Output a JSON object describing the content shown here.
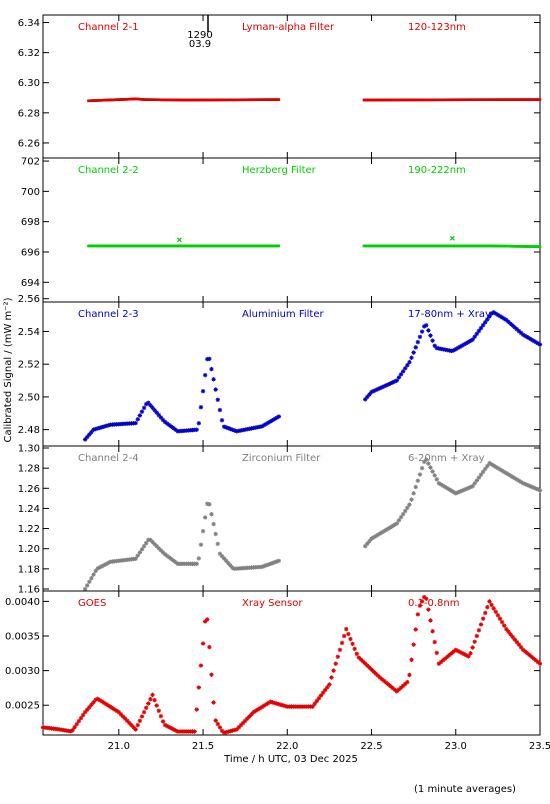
{
  "figure": {
    "ylabel": "Calibrated Signal / (mW m⁻²)",
    "xlabel": "Time / h UTC, 03 Dec 2025",
    "footnote": "(1 minute averages)",
    "annotation": {
      "line1": "1290",
      "line2": "03.9"
    },
    "x_ticks": [
      "21.0",
      "21.5",
      "22.0",
      "22.5",
      "23.0",
      "23.5"
    ]
  },
  "chart_data": [
    {
      "type": "scatter",
      "channel": "Channel 2-1",
      "filter": "Lyman-alpha Filter",
      "band": "120-123nm",
      "color": "#e00000",
      "marker": "dash",
      "xlim": [
        20.55,
        23.5
      ],
      "ylim": [
        6.25,
        6.345
      ],
      "yticks": [
        6.26,
        6.28,
        6.3,
        6.32,
        6.34
      ],
      "ytick_labels": [
        "6.26",
        "6.28",
        "6.30",
        "6.32",
        "6.34"
      ],
      "gap": [
        21.95,
        22.45
      ],
      "curve": [
        [
          20.82,
          6.288
        ],
        [
          21.05,
          6.289
        ],
        [
          21.1,
          6.2893
        ],
        [
          21.15,
          6.2888
        ],
        [
          21.4,
          6.2885
        ],
        [
          21.95,
          6.2888
        ],
        [
          22.45,
          6.2885
        ],
        [
          23.0,
          6.2887
        ],
        [
          23.5,
          6.2888
        ]
      ]
    },
    {
      "type": "scatter",
      "channel": "Channel 2-2",
      "filter": "Herzberg Filter",
      "band": "190-222nm",
      "color": "#00d000",
      "marker": "dash",
      "xlim": [
        20.55,
        23.5
      ],
      "ylim": [
        692.7,
        702.2
      ],
      "yticks": [
        694,
        696,
        698,
        700,
        702
      ],
      "ytick_labels": [
        "694",
        "696",
        "698",
        "700",
        "702"
      ],
      "gap": [
        21.95,
        22.45
      ],
      "curve": [
        [
          20.82,
          696.4
        ],
        [
          21.95,
          696.4
        ],
        [
          22.45,
          696.4
        ],
        [
          23.2,
          696.4
        ],
        [
          23.5,
          696.35
        ]
      ],
      "outliers": [
        [
          21.36,
          696.8
        ],
        [
          22.98,
          696.9
        ]
      ]
    },
    {
      "type": "scatter",
      "channel": "Channel 2-3",
      "filter": "Aluminium Filter",
      "band": "17-80nm + Xray",
      "color": "#0000c8",
      "marker": "asterisk",
      "xlim": [
        20.55,
        23.5
      ],
      "ylim": [
        2.47,
        2.558
      ],
      "yticks": [
        2.48,
        2.5,
        2.52,
        2.54,
        2.56
      ],
      "ytick_labels": [
        "2.48",
        "2.50",
        "2.52",
        "2.54",
        "2.56"
      ],
      "gap": [
        21.95,
        22.45
      ],
      "curve": [
        [
          20.8,
          2.474
        ],
        [
          20.85,
          2.48
        ],
        [
          20.95,
          2.483
        ],
        [
          21.1,
          2.484
        ],
        [
          21.17,
          2.497
        ],
        [
          21.27,
          2.485
        ],
        [
          21.35,
          2.479
        ],
        [
          21.47,
          2.48
        ],
        [
          21.53,
          2.527
        ],
        [
          21.62,
          2.482
        ],
        [
          21.7,
          2.479
        ],
        [
          21.85,
          2.482
        ],
        [
          21.95,
          2.488
        ],
        [
          22.45,
          2.497
        ],
        [
          22.5,
          2.503
        ],
        [
          22.65,
          2.51
        ],
        [
          22.73,
          2.522
        ],
        [
          22.82,
          2.545
        ],
        [
          22.88,
          2.53
        ],
        [
          22.98,
          2.528
        ],
        [
          23.1,
          2.535
        ],
        [
          23.22,
          2.552
        ],
        [
          23.3,
          2.547
        ],
        [
          23.4,
          2.538
        ],
        [
          23.5,
          2.532
        ]
      ]
    },
    {
      "type": "scatter",
      "channel": "Channel 2-4",
      "filter": "Zirconium Filter",
      "band": "6-20nm + Xray",
      "color": "#808080",
      "marker": "asterisk",
      "xlim": [
        20.55,
        23.5
      ],
      "ylim": [
        1.158,
        1.302
      ],
      "yticks": [
        1.16,
        1.18,
        1.2,
        1.22,
        1.24,
        1.26,
        1.28,
        1.3
      ],
      "ytick_labels": [
        "1.16",
        "1.18",
        "1.20",
        "1.22",
        "1.24",
        "1.26",
        "1.28",
        "1.30"
      ],
      "gap": [
        21.95,
        22.45
      ],
      "curve": [
        [
          20.8,
          1.16
        ],
        [
          20.87,
          1.18
        ],
        [
          20.95,
          1.187
        ],
        [
          21.1,
          1.19
        ],
        [
          21.18,
          1.21
        ],
        [
          21.27,
          1.195
        ],
        [
          21.35,
          1.185
        ],
        [
          21.47,
          1.185
        ],
        [
          21.53,
          1.25
        ],
        [
          21.6,
          1.195
        ],
        [
          21.68,
          1.18
        ],
        [
          21.85,
          1.182
        ],
        [
          21.95,
          1.188
        ],
        [
          22.45,
          1.2
        ],
        [
          22.5,
          1.21
        ],
        [
          22.65,
          1.225
        ],
        [
          22.73,
          1.245
        ],
        [
          22.82,
          1.29
        ],
        [
          22.9,
          1.265
        ],
        [
          23.0,
          1.255
        ],
        [
          23.1,
          1.262
        ],
        [
          23.2,
          1.285
        ],
        [
          23.3,
          1.275
        ],
        [
          23.4,
          1.265
        ],
        [
          23.5,
          1.258
        ]
      ]
    },
    {
      "type": "scatter",
      "channel": "GOES",
      "filter": "Xray Sensor",
      "band": "0.1-0.8nm",
      "color": "#e00000",
      "marker": "asterisk",
      "xlim": [
        20.55,
        23.5
      ],
      "ylim": [
        0.00207,
        0.00415
      ],
      "yticks": [
        0.0025,
        0.003,
        0.0035,
        0.004
      ],
      "ytick_labels": [
        "0.0025",
        "0.0030",
        "0.0035",
        "0.0040"
      ],
      "gap": null,
      "curve": [
        [
          20.55,
          0.00218
        ],
        [
          20.65,
          0.00215
        ],
        [
          20.72,
          0.00212
        ],
        [
          20.8,
          0.0024
        ],
        [
          20.87,
          0.0026
        ],
        [
          21.0,
          0.0024
        ],
        [
          21.1,
          0.00215
        ],
        [
          21.2,
          0.00265
        ],
        [
          21.27,
          0.00222
        ],
        [
          21.35,
          0.00212
        ],
        [
          21.45,
          0.00212
        ],
        [
          21.52,
          0.0039
        ],
        [
          21.57,
          0.0023
        ],
        [
          21.62,
          0.0021
        ],
        [
          21.7,
          0.00215
        ],
        [
          21.8,
          0.0024
        ],
        [
          21.9,
          0.00255
        ],
        [
          22.0,
          0.00248
        ],
        [
          22.15,
          0.00248
        ],
        [
          22.25,
          0.0028
        ],
        [
          22.35,
          0.0036
        ],
        [
          22.42,
          0.0032
        ],
        [
          22.55,
          0.0029
        ],
        [
          22.65,
          0.0027
        ],
        [
          22.72,
          0.00285
        ],
        [
          22.78,
          0.0039
        ],
        [
          22.82,
          0.0041
        ],
        [
          22.9,
          0.0031
        ],
        [
          23.0,
          0.0033
        ],
        [
          23.08,
          0.0032
        ],
        [
          23.2,
          0.004
        ],
        [
          23.3,
          0.0036
        ],
        [
          23.4,
          0.0033
        ],
        [
          23.5,
          0.0031
        ]
      ]
    }
  ]
}
